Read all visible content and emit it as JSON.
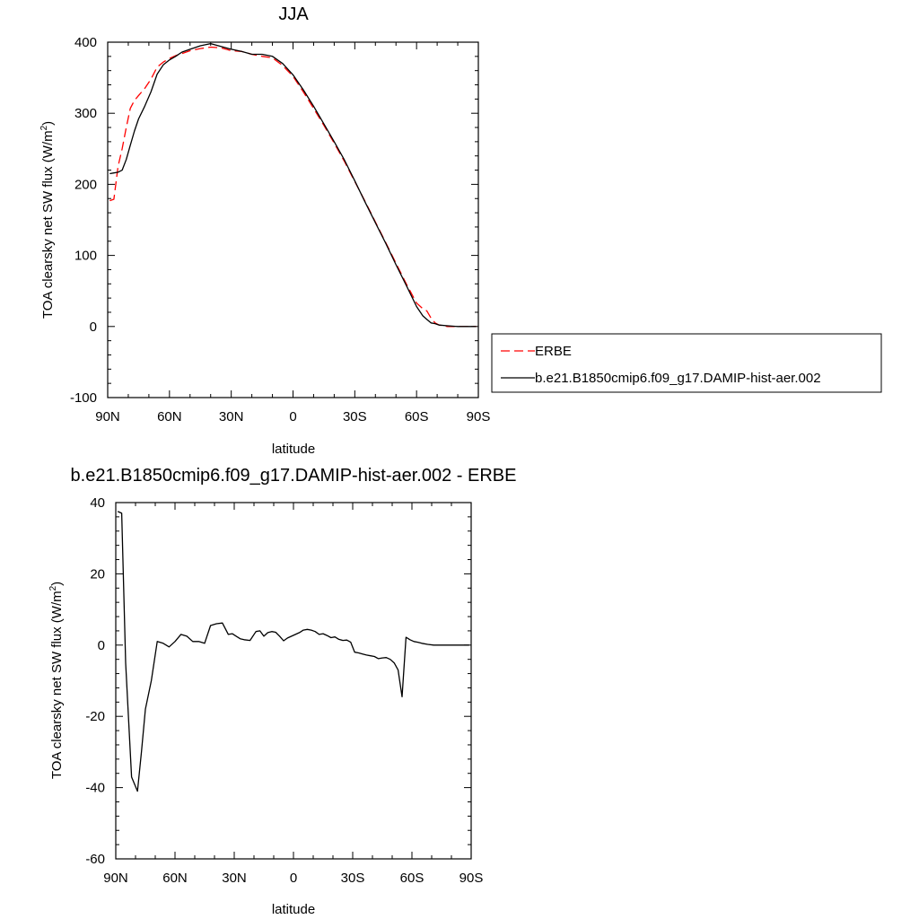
{
  "chart_data": [
    {
      "type": "line",
      "title": "JJA",
      "xlabel": "latitude",
      "ylabel": "TOA clearsky net SW flux (W/m",
      "ylabel_sup": "2",
      "ylabel_tail": ")",
      "xlim": [
        90,
        -90
      ],
      "ylim": [
        -100,
        400
      ],
      "yticks": [
        -100,
        0,
        100,
        200,
        300,
        400
      ],
      "xticks": [
        {
          "value": 90,
          "label": "90N"
        },
        {
          "value": 60,
          "label": "60N"
        },
        {
          "value": 30,
          "label": "30N"
        },
        {
          "value": 0,
          "label": "0"
        },
        {
          "value": -30,
          "label": "30S"
        },
        {
          "value": -60,
          "label": "60S"
        },
        {
          "value": -90,
          "label": "90S"
        }
      ],
      "legend": {
        "placement": "right"
      },
      "series": [
        {
          "name": "ERBE",
          "color": "#ff0000",
          "dash": "dashed",
          "x": [
            89,
            87,
            85,
            83,
            81,
            79,
            77,
            75,
            72,
            69,
            66,
            63,
            60,
            57,
            54,
            50,
            45,
            40,
            35,
            30,
            25,
            20,
            15,
            10,
            5,
            0,
            -5,
            -10,
            -15,
            -20,
            -25,
            -30,
            -35,
            -40,
            -45,
            -50,
            -55,
            -60,
            -63,
            -65,
            -67,
            -69,
            -71,
            -75,
            -80,
            -85,
            -89
          ],
          "y": [
            177,
            179,
            225,
            250,
            280,
            307,
            318,
            325,
            335,
            348,
            365,
            372,
            377,
            381,
            384,
            388,
            391,
            393,
            392,
            388,
            387,
            383,
            380,
            378,
            367,
            352,
            330,
            307,
            283,
            258,
            232,
            204,
            176,
            147,
            118,
            89,
            60,
            33,
            25,
            22,
            12,
            5,
            2,
            0,
            0,
            0,
            0
          ]
        },
        {
          "name": "b.e21.B1850cmip6.f09_g17.DAMIP-hist-aer.002",
          "color": "#000000",
          "dash": "solid",
          "x": [
            89,
            87,
            85,
            83,
            81,
            79,
            77,
            75,
            72,
            69,
            66,
            63,
            60,
            57,
            54,
            50,
            45,
            40,
            35,
            30,
            25,
            20,
            15,
            10,
            5,
            0,
            -5,
            -10,
            -15,
            -20,
            -25,
            -30,
            -35,
            -40,
            -45,
            -50,
            -55,
            -60,
            -63,
            -65,
            -67,
            -69,
            -71,
            -75,
            -80,
            -85,
            -89
          ],
          "y": [
            215,
            216,
            217,
            220,
            235,
            255,
            275,
            292,
            310,
            330,
            355,
            368,
            375,
            380,
            386,
            390,
            395,
            398,
            394,
            390,
            387,
            383,
            383,
            380,
            370,
            354,
            333,
            310,
            285,
            260,
            234,
            205,
            175,
            146,
            117,
            87,
            58,
            28,
            15,
            10,
            5,
            4,
            2,
            1,
            0,
            0,
            0
          ]
        }
      ]
    },
    {
      "type": "line",
      "title": "b.e21.B1850cmip6.f09_g17.DAMIP-hist-aer.002 - ERBE",
      "xlabel": "latitude",
      "ylabel": "TOA clearsky net SW flux (W/m",
      "ylabel_sup": "2",
      "ylabel_tail": ")",
      "xlim": [
        90,
        -90
      ],
      "ylim": [
        -60,
        40
      ],
      "yticks": [
        -60,
        -40,
        -20,
        0,
        20,
        40
      ],
      "xticks": [
        {
          "value": 90,
          "label": "90N"
        },
        {
          "value": 60,
          "label": "60N"
        },
        {
          "value": 30,
          "label": "30N"
        },
        {
          "value": 0,
          "label": "0"
        },
        {
          "value": -30,
          "label": "30S"
        },
        {
          "value": -60,
          "label": "60S"
        },
        {
          "value": -90,
          "label": "90S"
        }
      ],
      "series": [
        {
          "color": "#000000",
          "dash": "solid",
          "x": [
            89,
            87,
            85,
            82,
            79,
            77,
            75,
            72,
            69,
            66,
            63,
            60,
            57,
            54,
            51,
            48,
            45,
            42,
            39,
            36,
            33,
            31,
            29,
            27,
            25,
            22,
            19,
            17,
            15,
            13,
            11,
            9,
            7,
            5,
            3,
            1,
            -1,
            -3,
            -5,
            -7,
            -9,
            -11,
            -13,
            -15,
            -17,
            -19,
            -21,
            -23,
            -25,
            -27,
            -29,
            -31,
            -33,
            -35,
            -37,
            -39,
            -41,
            -43,
            -45,
            -47,
            -49,
            -51,
            -53,
            -55,
            -57,
            -59,
            -61,
            -63,
            -65,
            -68,
            -71,
            -74,
            -77,
            -80,
            -83,
            -86,
            -89
          ],
          "y": [
            37.5,
            37,
            -5,
            -37,
            -41,
            -30,
            -18,
            -10,
            1,
            0.5,
            -0.5,
            1,
            3,
            2.5,
            1,
            1,
            0.5,
            5.5,
            6,
            6.2,
            3,
            3.2,
            2.5,
            1.8,
            1.5,
            1.3,
            3.8,
            4,
            2.5,
            3.5,
            3.8,
            3.6,
            2.5,
            1.2,
            2,
            2.5,
            3,
            3.5,
            4.2,
            4.4,
            4.2,
            3.8,
            3,
            3.2,
            2.7,
            2.1,
            2.3,
            1.6,
            1.3,
            1.4,
            0.8,
            -2,
            -2.2,
            -2.5,
            -2.8,
            -3,
            -3.2,
            -3.8,
            -3.6,
            -3.5,
            -4,
            -5,
            -7,
            -14.5,
            2.2,
            1.5,
            1,
            0.8,
            0.5,
            0.2,
            0,
            0,
            0,
            0,
            0,
            0,
            0
          ]
        }
      ]
    }
  ]
}
